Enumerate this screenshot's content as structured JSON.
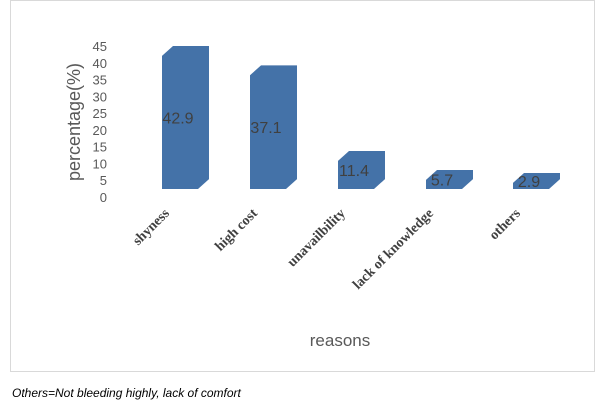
{
  "chart_data": {
    "type": "bar",
    "categories": [
      "shyness",
      "high cost",
      "unavailbility",
      "lack of knowledge",
      "others"
    ],
    "values": [
      42.9,
      37.1,
      11.4,
      5.7,
      2.9
    ],
    "data_labels": [
      "42.9",
      "37.1",
      "11.4",
      "5.7",
      "2.9"
    ],
    "ylabel": "percentage(%)",
    "xlabel": "reasons",
    "ylim": [
      0,
      45
    ],
    "yticks": [
      "0",
      "5",
      "10",
      "15",
      "20",
      "25",
      "30",
      "35",
      "40",
      "45"
    ],
    "grid": false,
    "legend": "none",
    "bar_color": "#4472a8"
  },
  "footnote": "Others=Not bleeding highly, lack of comfort"
}
